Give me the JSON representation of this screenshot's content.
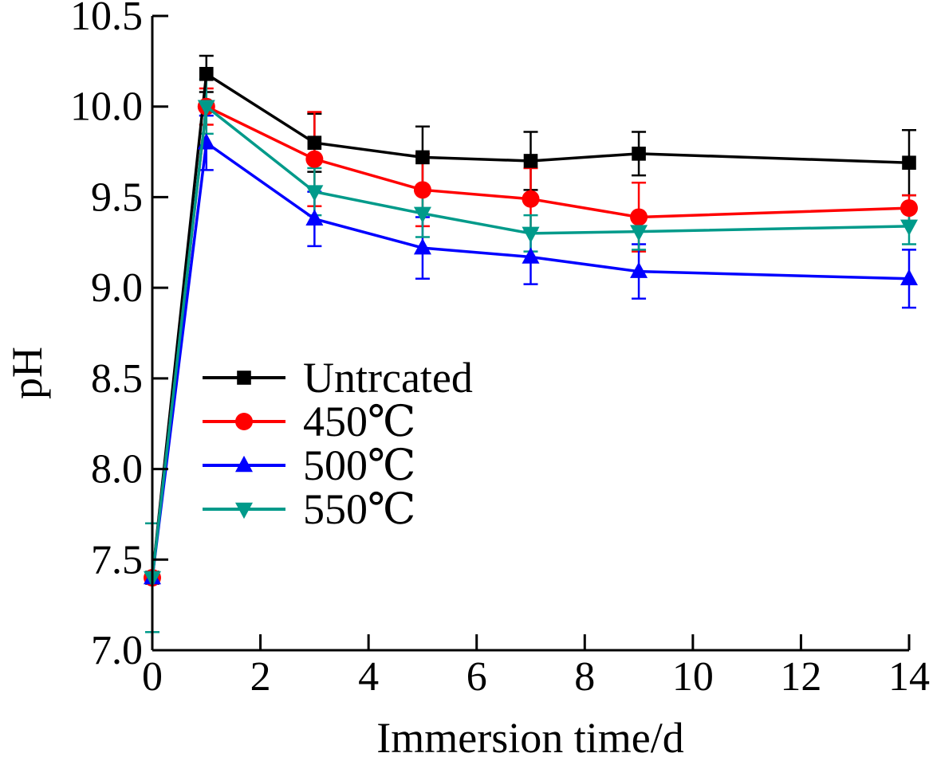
{
  "chart_data": {
    "type": "line",
    "xlabel": "Immersion time/d",
    "ylabel": "pH",
    "xlim": [
      0,
      14
    ],
    "ylim": [
      7.0,
      10.5
    ],
    "x_ticks": [
      0,
      2,
      4,
      6,
      8,
      10,
      12,
      14
    ],
    "x_tick_labels": [
      "0",
      "2",
      "4",
      "6",
      "8",
      "10",
      "12",
      "14"
    ],
    "y_ticks": [
      7.0,
      7.5,
      8.0,
      8.5,
      9.0,
      9.5,
      10.0,
      10.5
    ],
    "y_tick_labels": [
      "7.0",
      "7.5",
      "8.0",
      "8.5",
      "9.0",
      "9.5",
      "10.0",
      "10.5"
    ],
    "legend_position": "middle-left",
    "x": [
      0,
      1,
      3,
      5,
      7,
      9,
      14
    ],
    "series": [
      {
        "name": "Untrcated",
        "color": "#000000",
        "marker": "square",
        "values": [
          7.4,
          10.18,
          9.8,
          9.72,
          9.7,
          9.74,
          9.69
        ],
        "errors": [
          0.3,
          0.1,
          0.16,
          0.17,
          0.16,
          0.12,
          0.18
        ]
      },
      {
        "name": "450℃",
        "color": "#ff0000",
        "marker": "circle",
        "values": [
          7.4,
          10.0,
          9.71,
          9.54,
          9.49,
          9.39,
          9.44
        ],
        "errors": [
          0.3,
          0.1,
          0.26,
          0.2,
          0.17,
          0.19,
          0.07
        ]
      },
      {
        "name": "500℃",
        "color": "#0000ff",
        "marker": "triangle-up",
        "values": [
          7.4,
          9.8,
          9.38,
          9.22,
          9.17,
          9.09,
          9.05
        ],
        "errors": [
          0.3,
          0.15,
          0.15,
          0.17,
          0.15,
          0.15,
          0.16
        ]
      },
      {
        "name": "550℃",
        "color": "#009a8a",
        "marker": "triangle-down",
        "values": [
          7.4,
          10.0,
          9.53,
          9.41,
          9.3,
          9.31,
          9.34
        ],
        "errors": [
          0.3,
          0.15,
          0.13,
          0.13,
          0.1,
          0.1,
          0.1
        ]
      }
    ]
  }
}
